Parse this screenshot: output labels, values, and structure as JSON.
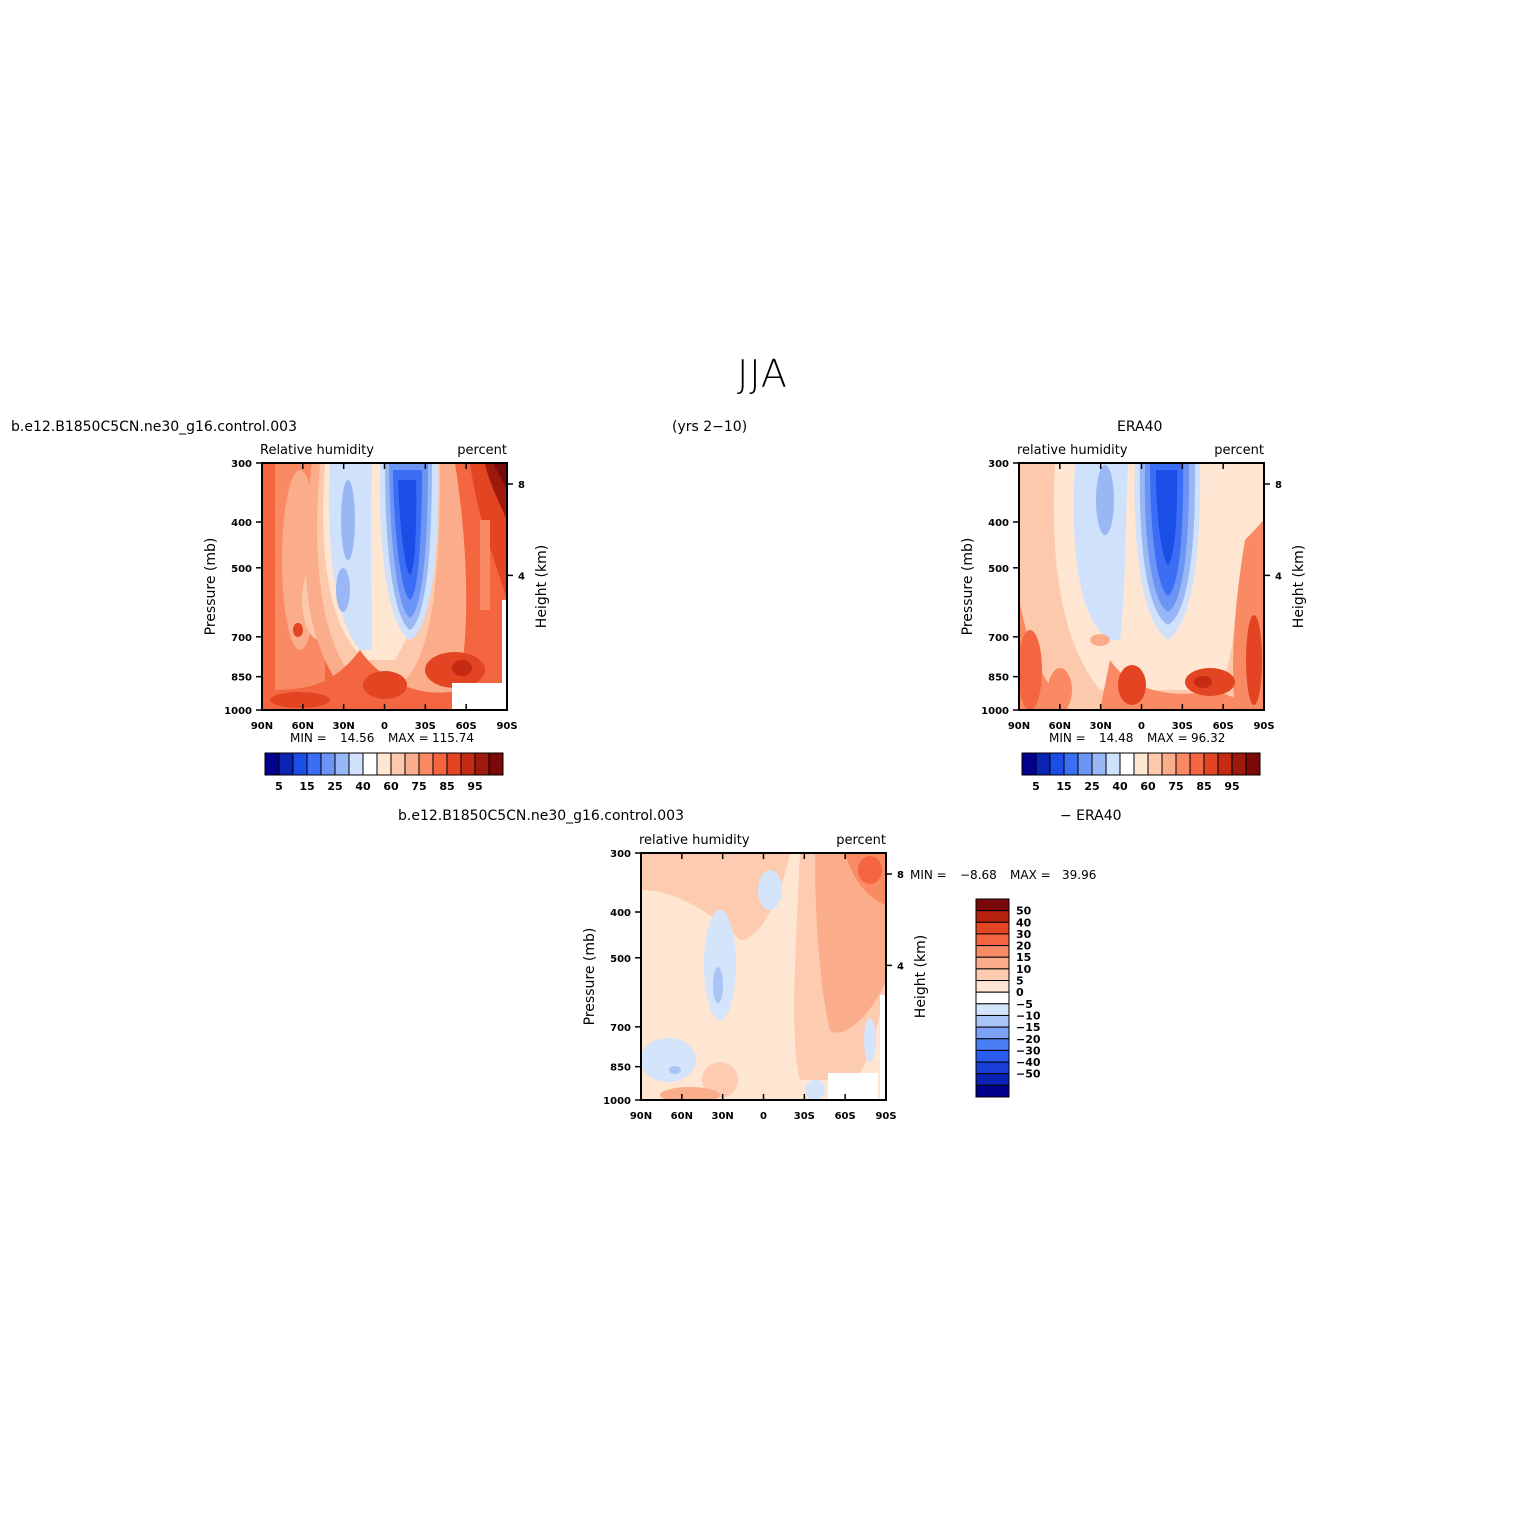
{
  "page": {
    "title": "JJA",
    "case_name": "b.e12.B1850C5CN.ne30_g16.control.003",
    "years": "(yrs 2−10)",
    "obs_name": "ERA40",
    "diff_left": "b.e12.B1850C5CN.ne30_g16.control.003",
    "diff_right": "− ERA40"
  },
  "colors": {
    "abs_scale": [
      "#00008c",
      "#0a23b5",
      "#1a4ee6",
      "#3b6ef5",
      "#6b94f5",
      "#9ab7f5",
      "#cfe1fb",
      "#ffffff",
      "#fee6d2",
      "#fcc9ad",
      "#fbac8a",
      "#f98a64",
      "#f4663f",
      "#e34422",
      "#c52b12",
      "#9e1a0c",
      "#7a0a0a"
    ],
    "diff_scale": [
      "#00008c",
      "#0a23b5",
      "#1a3ed8",
      "#2a5cf0",
      "#4a7ef5",
      "#7ba2f6",
      "#a9c4f7",
      "#d4e4fb",
      "#ffffff",
      "#fee6d2",
      "#fdcbb0",
      "#fbac8a",
      "#f98a64",
      "#f4663f",
      "#e34422",
      "#b8230f",
      "#7a0a0a"
    ]
  },
  "chart_data": [
    {
      "type": "heatmap",
      "title": "b.e12.B1850C5CN.ne30_g16.control.003",
      "left_label": "Relative  humidity",
      "right_label": "percent",
      "xlabel": "",
      "ylabel": "Pressure  (mb)",
      "y2label": "Height  (km)",
      "x_ticks": [
        "90N",
        "60N",
        "30N",
        "0",
        "30S",
        "60S",
        "90S"
      ],
      "y_ticks": [
        "300",
        "400",
        "500",
        "700",
        "850",
        "1000"
      ],
      "y2_ticks": [
        "8",
        "4"
      ],
      "x_range": [
        90,
        -90
      ],
      "y_range": [
        300,
        1000
      ],
      "y_scale": "log",
      "min_label": "MIN =",
      "min_value": "14.56",
      "max_label": "MAX =",
      "max_value": "115.74",
      "colorbar_labels": [
        "5",
        "15",
        "25",
        "40",
        "60",
        "75",
        "85",
        "95"
      ],
      "levels": [
        5,
        10,
        15,
        20,
        25,
        30,
        40,
        50,
        60,
        65,
        70,
        75,
        80,
        85,
        90,
        95
      ]
    },
    {
      "type": "heatmap",
      "title": "ERA40",
      "left_label": "relative  humidity",
      "right_label": "percent",
      "xlabel": "",
      "ylabel": "Pressure  (mb)",
      "y2label": "Height  (km)",
      "x_ticks": [
        "90N",
        "60N",
        "30N",
        "0",
        "30S",
        "60S",
        "90S"
      ],
      "y_ticks": [
        "300",
        "400",
        "500",
        "700",
        "850",
        "1000"
      ],
      "y2_ticks": [
        "8",
        "4"
      ],
      "x_range": [
        90,
        -90
      ],
      "y_range": [
        300,
        1000
      ],
      "y_scale": "log",
      "min_label": "MIN =",
      "min_value": "14.48",
      "max_label": "MAX =",
      "max_value": "96.32",
      "colorbar_labels": [
        "5",
        "15",
        "25",
        "40",
        "60",
        "75",
        "85",
        "95"
      ],
      "levels": [
        5,
        10,
        15,
        20,
        25,
        30,
        40,
        50,
        60,
        65,
        70,
        75,
        80,
        85,
        90,
        95
      ]
    },
    {
      "type": "heatmap",
      "title": "b.e12.B1850C5CN.ne30_g16.control.003  − ERA40",
      "left_label": "relative  humidity",
      "right_label": "percent",
      "xlabel": "",
      "ylabel": "Pressure  (mb)",
      "y2label": "Height  (km)",
      "x_ticks": [
        "90N",
        "60N",
        "30N",
        "0",
        "30S",
        "60S",
        "90S"
      ],
      "y_ticks": [
        "300",
        "400",
        "500",
        "700",
        "850",
        "1000"
      ],
      "y2_ticks": [
        "8",
        "4"
      ],
      "x_range": [
        90,
        -90
      ],
      "y_range": [
        300,
        1000
      ],
      "y_scale": "log",
      "min_label": "MIN =",
      "min_value": "−8.68",
      "max_label": "MAX =",
      "max_value": "39.96",
      "colorbar_labels": [
        "50",
        "40",
        "30",
        "20",
        "15",
        "10",
        "5",
        "0",
        "−5",
        "−10",
        "−15",
        "−20",
        "−30",
        "−40",
        "−50"
      ],
      "levels": [
        -50,
        -40,
        -30,
        -20,
        -15,
        -10,
        -5,
        0,
        5,
        10,
        15,
        20,
        30,
        40,
        50
      ]
    }
  ]
}
